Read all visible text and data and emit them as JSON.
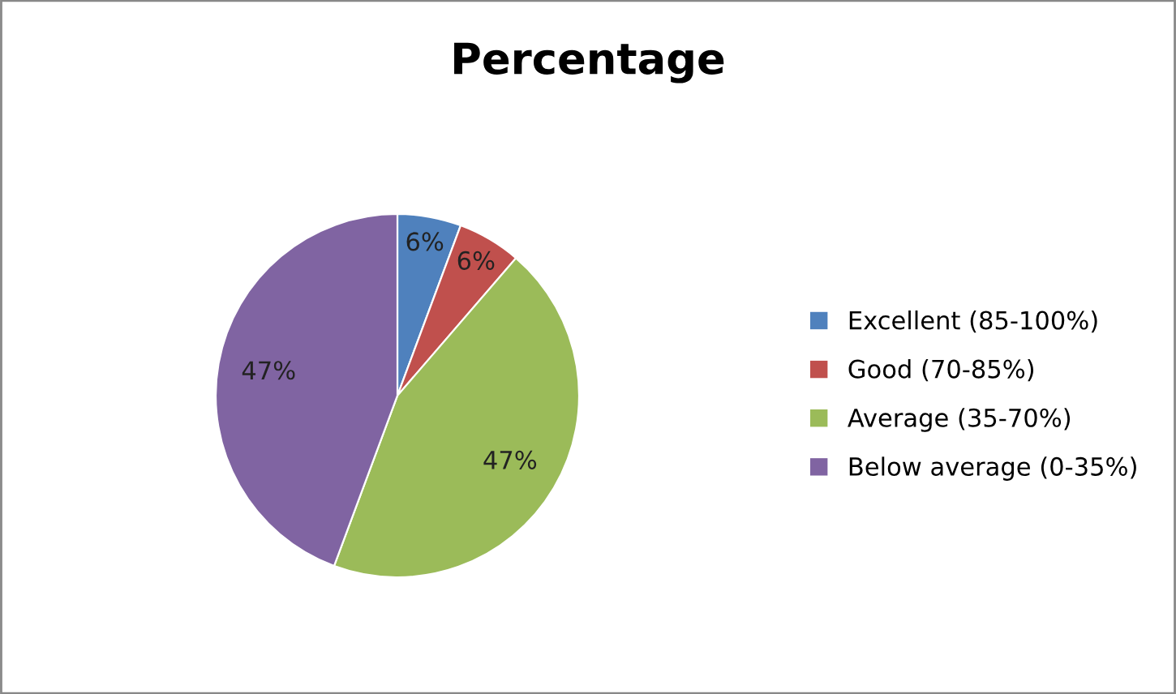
{
  "chart_data": {
    "type": "pie",
    "title": "Percentage",
    "categories": [
      "Excellent (85-100%)",
      "Good (70-85%)",
      "Average (35-70%)",
      "Below average (0-35%)"
    ],
    "values": [
      6,
      6,
      47,
      47
    ],
    "value_labels": [
      "6%",
      "6%",
      "47%",
      "47%"
    ],
    "colors": [
      "#4f81bd",
      "#c0504d",
      "#9bbb59",
      "#8064a2"
    ],
    "legend": "right"
  }
}
